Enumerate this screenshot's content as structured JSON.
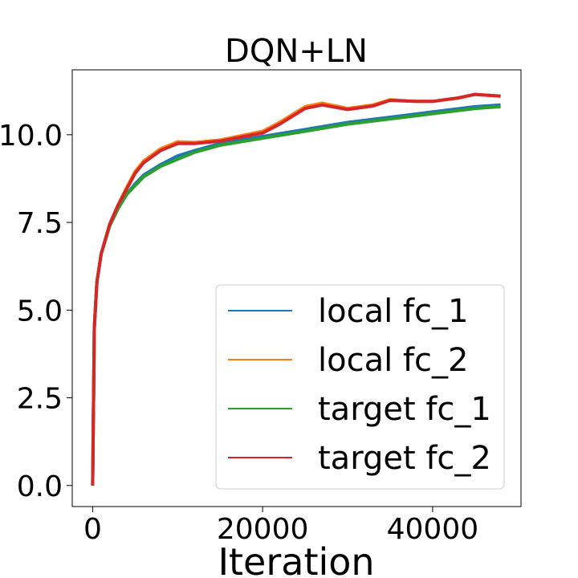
{
  "chart_data": {
    "type": "line",
    "title": "DQN+LN",
    "xlabel": "Iteration",
    "ylabel": "",
    "xlim": [
      -2400,
      50400
    ],
    "ylim": [
      -0.6,
      11.85
    ],
    "xticks": [
      0,
      20000,
      40000
    ],
    "xtick_labels": [
      "0",
      "20000",
      "40000"
    ],
    "yticks": [
      0,
      2.5,
      5,
      7.5,
      10
    ],
    "ytick_labels": [
      "0.0",
      "2.5",
      "5.0",
      "7.5",
      "10.0"
    ],
    "grid": false,
    "legend_position": "lower right",
    "series": [
      {
        "name": "local fc_1",
        "color": "#1f77b4",
        "x": [
          0,
          200,
          500,
          1000,
          2000,
          3000,
          4000,
          5000,
          6000,
          8000,
          10000,
          12000,
          15000,
          20000,
          25000,
          30000,
          35000,
          40000,
          45000,
          48000
        ],
        "y": [
          0,
          4.5,
          5.8,
          6.6,
          7.4,
          7.9,
          8.3,
          8.6,
          8.85,
          9.15,
          9.4,
          9.55,
          9.75,
          9.95,
          10.15,
          10.35,
          10.5,
          10.65,
          10.8,
          10.85
        ]
      },
      {
        "name": "local fc_2",
        "color": "#ff7f0e",
        "x": [
          0,
          200,
          500,
          1000,
          2000,
          3000,
          4000,
          5000,
          6000,
          8000,
          10000,
          12000,
          15000,
          20000,
          22000,
          25000,
          27000,
          30000,
          33000,
          35000,
          38000,
          40000,
          43000,
          45000,
          48000
        ],
        "y": [
          0,
          4.5,
          5.8,
          6.6,
          7.45,
          8.0,
          8.5,
          8.95,
          9.25,
          9.6,
          9.8,
          9.78,
          9.85,
          10.1,
          10.35,
          10.8,
          10.9,
          10.75,
          10.85,
          11.0,
          10.95,
          10.95,
          11.05,
          11.15,
          11.1
        ]
      },
      {
        "name": "target fc_1",
        "color": "#2ca02c",
        "x": [
          0,
          200,
          500,
          1000,
          2000,
          3000,
          4000,
          5000,
          6000,
          8000,
          10000,
          12000,
          15000,
          20000,
          25000,
          30000,
          35000,
          40000,
          45000,
          48000
        ],
        "y": [
          0,
          4.5,
          5.8,
          6.6,
          7.4,
          7.9,
          8.3,
          8.55,
          8.8,
          9.1,
          9.3,
          9.5,
          9.7,
          9.9,
          10.1,
          10.3,
          10.45,
          10.6,
          10.75,
          10.8
        ]
      },
      {
        "name": "target fc_2",
        "color": "#d62728",
        "x": [
          0,
          200,
          500,
          1000,
          2000,
          3000,
          4000,
          5000,
          6000,
          8000,
          10000,
          12000,
          15000,
          20000,
          22000,
          25000,
          27000,
          30000,
          33000,
          35000,
          38000,
          40000,
          43000,
          45000,
          48000
        ],
        "y": [
          0,
          4.5,
          5.8,
          6.6,
          7.45,
          8.0,
          8.45,
          8.9,
          9.2,
          9.55,
          9.75,
          9.75,
          9.82,
          10.05,
          10.3,
          10.75,
          10.85,
          10.72,
          10.82,
          10.98,
          10.95,
          10.95,
          11.05,
          11.15,
          11.1
        ]
      }
    ]
  }
}
